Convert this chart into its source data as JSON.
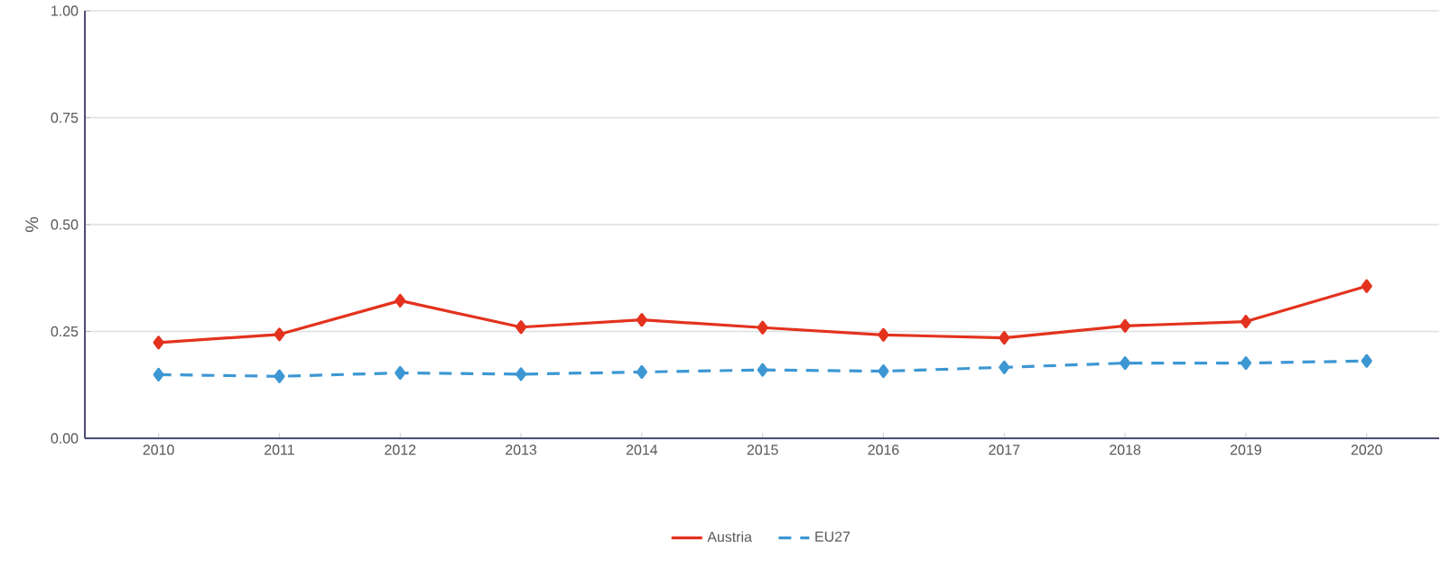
{
  "chart_data": {
    "type": "line",
    "ylabel": "%",
    "categories": [
      "2010",
      "2011",
      "2012",
      "2013",
      "2014",
      "2015",
      "2016",
      "2017",
      "2018",
      "2019",
      "2020"
    ],
    "series": [
      {
        "name": "Austria",
        "color": "#e3321e",
        "line_style": "solid",
        "values": [
          0.224,
          0.243,
          0.322,
          0.26,
          0.277,
          0.259,
          0.242,
          0.235,
          0.263,
          0.273,
          0.356
        ]
      },
      {
        "name": "EU27",
        "color": "#3d97d3",
        "line_style": "dashed",
        "values": [
          0.149,
          0.145,
          0.153,
          0.15,
          0.155,
          0.16,
          0.157,
          0.166,
          0.176,
          0.176,
          0.181
        ]
      }
    ],
    "ylim": [
      0,
      1
    ],
    "yticks": [
      {
        "value": 0,
        "label": "0.00"
      },
      {
        "value": 0.25,
        "label": "0.25"
      },
      {
        "value": 0.5,
        "label": "0.50"
      },
      {
        "value": 0.75,
        "label": "0.75"
      },
      {
        "value": 1,
        "label": "1.00"
      }
    ],
    "grid": "y",
    "legend": "bottom",
    "marker": "diamond"
  }
}
